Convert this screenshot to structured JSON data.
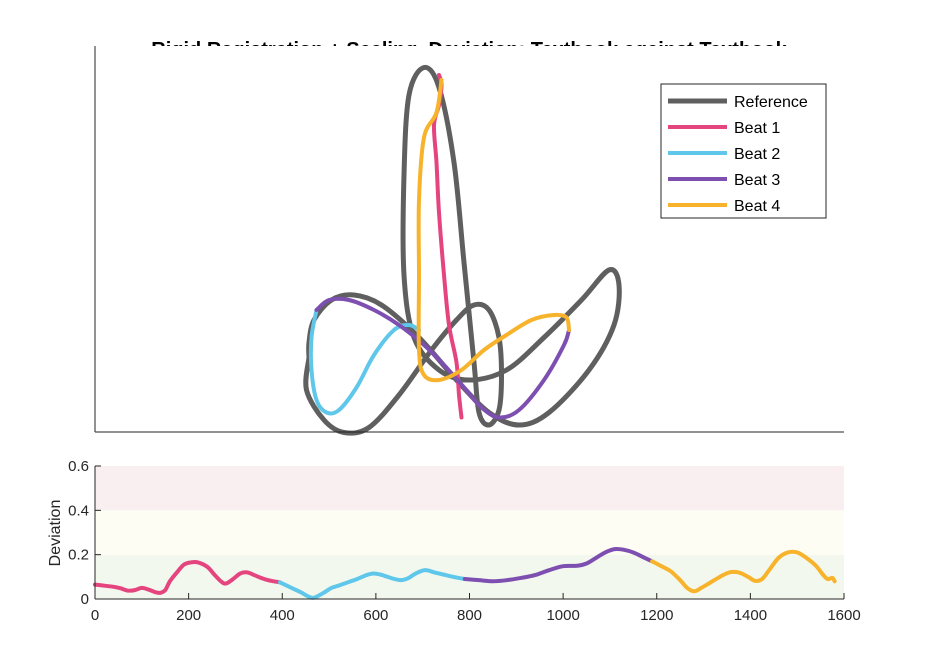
{
  "chart_data": [
    {
      "type": "line",
      "title": "Rigid Registration + Scaling, Deviation: Textbook against Textbook",
      "xlabel": "",
      "ylabel": "",
      "axis_ticks_visible": false,
      "legend_location": "top-right",
      "series": [
        {
          "name": "Reference",
          "color": "#5f5f5f",
          "points": [
            [
              -0.64,
              -0.03
            ],
            [
              -0.65,
              -0.16
            ],
            [
              -0.58,
              -0.28
            ],
            [
              -0.5,
              -0.33
            ],
            [
              -0.4,
              -0.31
            ],
            [
              -0.28,
              -0.18
            ],
            [
              -0.15,
              0.0
            ],
            [
              -0.05,
              0.12
            ],
            [
              0.02,
              0.18
            ],
            [
              0.08,
              0.16
            ],
            [
              0.12,
              0.05
            ],
            [
              0.13,
              -0.1
            ],
            [
              0.12,
              -0.24
            ],
            [
              0.08,
              -0.3
            ],
            [
              0.04,
              -0.25
            ],
            [
              0.02,
              -0.05
            ],
            [
              -0.02,
              0.35
            ],
            [
              -0.06,
              0.75
            ],
            [
              -0.12,
              1.05
            ],
            [
              -0.18,
              1.13
            ],
            [
              -0.24,
              1.02
            ],
            [
              -0.26,
              0.7
            ],
            [
              -0.26,
              0.3
            ],
            [
              -0.22,
              0.05
            ],
            [
              -0.12,
              -0.08
            ],
            [
              0.0,
              -0.12
            ],
            [
              0.15,
              -0.08
            ],
            [
              0.3,
              0.05
            ],
            [
              0.45,
              0.2
            ],
            [
              0.56,
              0.32
            ],
            [
              0.6,
              0.26
            ],
            [
              0.58,
              0.1
            ],
            [
              0.48,
              -0.08
            ],
            [
              0.32,
              -0.25
            ],
            [
              0.2,
              -0.3
            ],
            [
              0.08,
              -0.25
            ],
            [
              -0.05,
              -0.12
            ],
            [
              -0.2,
              0.05
            ],
            [
              -0.35,
              0.18
            ],
            [
              -0.46,
              0.22
            ],
            [
              -0.55,
              0.2
            ],
            [
              -0.62,
              0.12
            ],
            [
              -0.64,
              0.03
            ]
          ]
        },
        {
          "name": "Beat 1",
          "color": "#e5457f",
          "points": [
            [
              -0.12,
              1.1
            ],
            [
              -0.11,
              1.06
            ],
            [
              -0.12,
              0.98
            ],
            [
              -0.14,
              0.9
            ],
            [
              -0.13,
              0.75
            ],
            [
              -0.12,
              0.55
            ],
            [
              -0.1,
              0.3
            ],
            [
              -0.08,
              0.1
            ],
            [
              -0.05,
              -0.05
            ],
            [
              -0.04,
              -0.18
            ],
            [
              -0.03,
              -0.27
            ]
          ]
        },
        {
          "name": "Beat 2",
          "color": "#5fc7ea",
          "points": [
            [
              -0.61,
              0.16
            ],
            [
              -0.63,
              0.05
            ],
            [
              -0.63,
              -0.08
            ],
            [
              -0.61,
              -0.2
            ],
            [
              -0.57,
              -0.25
            ],
            [
              -0.52,
              -0.24
            ],
            [
              -0.45,
              -0.15
            ],
            [
              -0.38,
              -0.02
            ],
            [
              -0.3,
              0.08
            ],
            [
              -0.24,
              0.1
            ],
            [
              -0.2,
              0.08
            ]
          ]
        },
        {
          "name": "Beat 3",
          "color": "#7d4fb0",
          "points": [
            [
              -0.61,
              0.16
            ],
            [
              -0.56,
              0.2
            ],
            [
              -0.48,
              0.2
            ],
            [
              -0.38,
              0.16
            ],
            [
              -0.28,
              0.1
            ],
            [
              -0.18,
              0.02
            ],
            [
              -0.1,
              -0.06
            ],
            [
              -0.02,
              -0.15
            ],
            [
              0.05,
              -0.23
            ],
            [
              0.12,
              -0.27
            ],
            [
              0.2,
              -0.24
            ],
            [
              0.3,
              -0.12
            ],
            [
              0.38,
              0.02
            ],
            [
              0.4,
              0.08
            ]
          ]
        },
        {
          "name": "Beat 4",
          "color": "#f7b32b",
          "points": [
            [
              0.4,
              0.08
            ],
            [
              0.39,
              0.13
            ],
            [
              0.34,
              0.14
            ],
            [
              0.25,
              0.12
            ],
            [
              0.15,
              0.06
            ],
            [
              0.06,
              0.0
            ],
            [
              -0.03,
              -0.08
            ],
            [
              -0.12,
              -0.12
            ],
            [
              -0.18,
              -0.1
            ],
            [
              -0.2,
              0.0
            ],
            [
              -0.2,
              0.3
            ],
            [
              -0.2,
              0.6
            ],
            [
              -0.18,
              0.85
            ],
            [
              -0.13,
              0.95
            ],
            [
              -0.11,
              1.08
            ]
          ]
        }
      ]
    },
    {
      "type": "area",
      "title": "",
      "xlabel": "",
      "ylabel": "Deviation",
      "xlim": [
        0,
        1600
      ],
      "ylim": [
        0,
        0.6
      ],
      "xticks": [
        0,
        200,
        400,
        600,
        800,
        1000,
        1200,
        1400,
        1600
      ],
      "yticks": [
        0,
        0.2,
        0.4,
        0.6
      ],
      "xtick_labels": [
        "0",
        "200",
        "400",
        "600",
        "800",
        "1000",
        "1200",
        "1400",
        "1600"
      ],
      "ytick_labels": [
        "0",
        "0.2",
        "0.4",
        "0.6"
      ],
      "bands": [
        {
          "from": 0,
          "to": 0.2,
          "color": "#f3f8ee"
        },
        {
          "from": 0.2,
          "to": 0.4,
          "color": "#fefdf3"
        },
        {
          "from": 0.4,
          "to": 0.6,
          "color": "#f9eef0"
        }
      ],
      "series": [
        {
          "name": "Beat 1",
          "color": "#e5457f",
          "points": [
            [
              0,
              0.065
            ],
            [
              20,
              0.06
            ],
            [
              40,
              0.055
            ],
            [
              55,
              0.048
            ],
            [
              70,
              0.038
            ],
            [
              85,
              0.04
            ],
            [
              100,
              0.05
            ],
            [
              115,
              0.042
            ],
            [
              130,
              0.03
            ],
            [
              140,
              0.028
            ],
            [
              150,
              0.04
            ],
            [
              160,
              0.08
            ],
            [
              175,
              0.12
            ],
            [
              190,
              0.155
            ],
            [
              205,
              0.165
            ],
            [
              220,
              0.165
            ],
            [
              240,
              0.145
            ],
            [
              255,
              0.11
            ],
            [
              270,
              0.078
            ],
            [
              280,
              0.07
            ],
            [
              295,
              0.09
            ],
            [
              310,
              0.115
            ],
            [
              325,
              0.12
            ],
            [
              340,
              0.108
            ],
            [
              355,
              0.095
            ],
            [
              370,
              0.085
            ],
            [
              395,
              0.075
            ]
          ]
        },
        {
          "name": "Beat 2",
          "color": "#5fc7ea",
          "points": [
            [
              395,
              0.075
            ],
            [
              410,
              0.06
            ],
            [
              425,
              0.045
            ],
            [
              440,
              0.03
            ],
            [
              455,
              0.012
            ],
            [
              465,
              0.005
            ],
            [
              475,
              0.012
            ],
            [
              490,
              0.03
            ],
            [
              505,
              0.05
            ],
            [
              520,
              0.06
            ],
            [
              540,
              0.075
            ],
            [
              560,
              0.09
            ],
            [
              580,
              0.108
            ],
            [
              595,
              0.115
            ],
            [
              610,
              0.11
            ],
            [
              625,
              0.1
            ],
            [
              640,
              0.09
            ],
            [
              655,
              0.085
            ],
            [
              670,
              0.095
            ],
            [
              685,
              0.115
            ],
            [
              705,
              0.13
            ],
            [
              725,
              0.12
            ],
            [
              745,
              0.11
            ],
            [
              765,
              0.1
            ],
            [
              790,
              0.09
            ]
          ]
        },
        {
          "name": "Beat 3",
          "color": "#7d4fb0",
          "points": [
            [
              790,
              0.09
            ],
            [
              820,
              0.085
            ],
            [
              850,
              0.08
            ],
            [
              880,
              0.085
            ],
            [
              910,
              0.095
            ],
            [
              940,
              0.108
            ],
            [
              970,
              0.13
            ],
            [
              1000,
              0.148
            ],
            [
              1030,
              0.15
            ],
            [
              1050,
              0.16
            ],
            [
              1070,
              0.185
            ],
            [
              1090,
              0.21
            ],
            [
              1110,
              0.225
            ],
            [
              1130,
              0.222
            ],
            [
              1150,
              0.21
            ],
            [
              1170,
              0.19
            ],
            [
              1190,
              0.17
            ]
          ]
        },
        {
          "name": "Beat 4",
          "color": "#f7b32b",
          "points": [
            [
              1190,
              0.17
            ],
            [
              1210,
              0.148
            ],
            [
              1230,
              0.125
            ],
            [
              1250,
              0.085
            ],
            [
              1265,
              0.05
            ],
            [
              1280,
              0.035
            ],
            [
              1295,
              0.05
            ],
            [
              1315,
              0.075
            ],
            [
              1335,
              0.1
            ],
            [
              1355,
              0.12
            ],
            [
              1375,
              0.12
            ],
            [
              1395,
              0.1
            ],
            [
              1410,
              0.082
            ],
            [
              1425,
              0.09
            ],
            [
              1440,
              0.13
            ],
            [
              1460,
              0.185
            ],
            [
              1480,
              0.21
            ],
            [
              1500,
              0.21
            ],
            [
              1520,
              0.185
            ],
            [
              1540,
              0.15
            ],
            [
              1555,
              0.11
            ],
            [
              1565,
              0.09
            ],
            [
              1575,
              0.095
            ],
            [
              1580,
              0.08
            ]
          ]
        }
      ]
    }
  ]
}
